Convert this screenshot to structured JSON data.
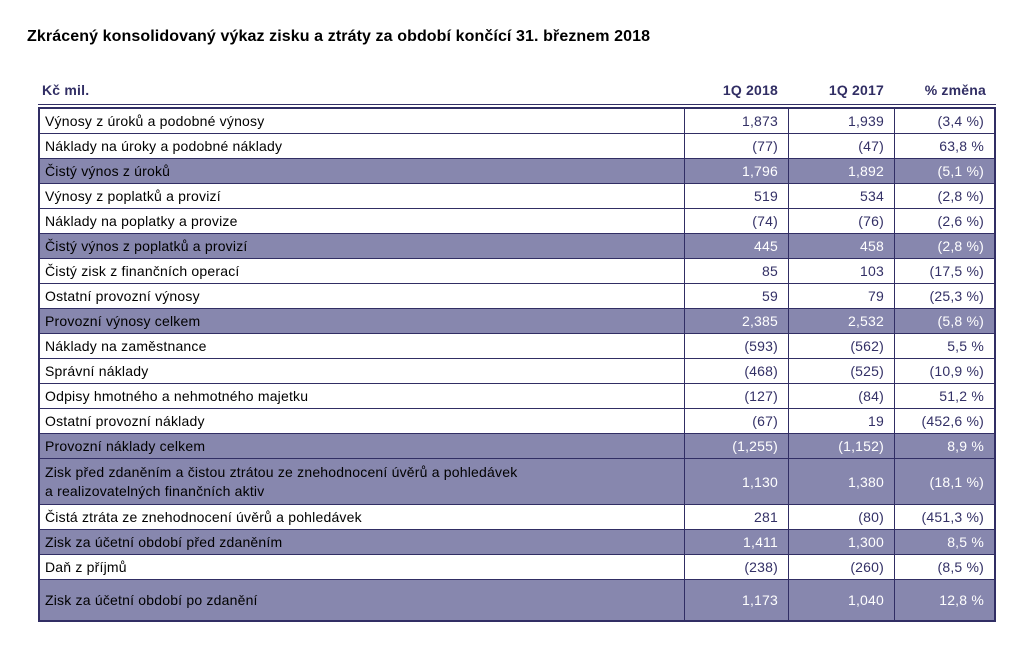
{
  "page": {
    "title": "Zkrácený konsolidovaný výkaz zisku a ztráty za období končící 31. březnem 2018"
  },
  "colors": {
    "highlight_fill": "#8787ae",
    "line_and_header": "#312e64",
    "number_text": "#333066",
    "highlight_number_text": "#ffffff",
    "label_text": "#000000"
  },
  "table": {
    "unit_label": "Kč mil.",
    "columns": [
      "1Q 2018",
      "1Q 2017",
      "% změna"
    ],
    "rows": [
      {
        "label": "Výnosy z úroků a podobné výnosy",
        "q1_2018": "1,873",
        "q1_2017": "1,939",
        "change": "(3,4 %)",
        "highlight": false
      },
      {
        "label": "Náklady na úroky a podobné náklady",
        "q1_2018": "(77)",
        "q1_2017": "(47)",
        "change": "63,8 %",
        "highlight": false
      },
      {
        "label": "Čistý výnos z úroků",
        "q1_2018": "1,796",
        "q1_2017": "1,892",
        "change": "(5,1 %)",
        "highlight": true
      },
      {
        "label": "Výnosy z poplatků a provizí",
        "q1_2018": "519",
        "q1_2017": "534",
        "change": "(2,8 %)",
        "highlight": false
      },
      {
        "label": "Náklady na poplatky a provize",
        "q1_2018": "(74)",
        "q1_2017": "(76)",
        "change": "(2,6 %)",
        "highlight": false
      },
      {
        "label": "Čistý výnos z poplatků a provizí",
        "q1_2018": "445",
        "q1_2017": "458",
        "change": "(2,8 %)",
        "highlight": true
      },
      {
        "label": "Čistý zisk z finančních operací",
        "q1_2018": "85",
        "q1_2017": "103",
        "change": "(17,5 %)",
        "highlight": false
      },
      {
        "label": "Ostatní provozní výnosy",
        "q1_2018": "59",
        "q1_2017": "79",
        "change": "(25,3 %)",
        "highlight": false
      },
      {
        "label": "Provozní výnosy celkem",
        "q1_2018": "2,385",
        "q1_2017": "2,532",
        "change": "(5,8 %)",
        "highlight": true
      },
      {
        "label": "Náklady na zaměstnance",
        "q1_2018": "(593)",
        "q1_2017": "(562)",
        "change": "5,5 %",
        "highlight": false
      },
      {
        "label": "Správní náklady",
        "q1_2018": "(468)",
        "q1_2017": "(525)",
        "change": "(10,9 %)",
        "highlight": false
      },
      {
        "label": "Odpisy hmotného a nehmotného majetku",
        "q1_2018": "(127)",
        "q1_2017": "(84)",
        "change": "51,2 %",
        "highlight": false
      },
      {
        "label": "Ostatní provozní náklady",
        "q1_2018": "(67)",
        "q1_2017": "19",
        "change": "(452,6 %)",
        "highlight": false
      },
      {
        "label": "Provozní náklady celkem",
        "q1_2018": "(1,255)",
        "q1_2017": "(1,152)",
        "change": "8,9 %",
        "highlight": true
      },
      {
        "label": "Zisk před zdaněním a čistou ztrátou ze znehodnocení úvěrů a pohledávek\na realizovatelných finančních aktiv",
        "q1_2018": "1,130",
        "q1_2017": "1,380",
        "change": "(18,1 %)",
        "highlight": true
      },
      {
        "label": "Čistá ztráta ze znehodnocení úvěrů a pohledávek",
        "q1_2018": "281",
        "q1_2017": "(80)",
        "change": "(451,3 %)",
        "highlight": false
      },
      {
        "label": "Zisk za účetní období před zdaněním",
        "q1_2018": "1,411",
        "q1_2017": "1,300",
        "change": "8,5 %",
        "highlight": true
      },
      {
        "label": "Daň z příjmů",
        "q1_2018": "(238)",
        "q1_2017": "(260)",
        "change": "(8,5 %)",
        "highlight": false
      },
      {
        "label": "Zisk za účetní období po zdanění",
        "q1_2018": "1,173",
        "q1_2017": "1,040",
        "change": "12,8 %",
        "highlight": true
      }
    ]
  }
}
